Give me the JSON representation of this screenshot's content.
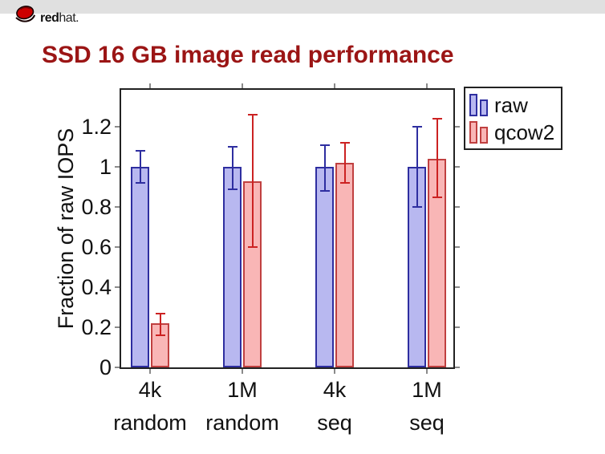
{
  "header": {
    "brand_bold": "red",
    "brand_rest": "hat",
    "brand_dot": "."
  },
  "title": "SSD 16 GB image read performance",
  "colors": {
    "title": "#9b1515",
    "band": "#e0e0e0",
    "axis": "#222222",
    "tick": "#8a8a8a"
  },
  "chart_data": {
    "type": "bar",
    "title": "SSD 16 GB image read performance",
    "xlabel": "",
    "ylabel": "Fraction of raw IOPS",
    "ylim": [
      0,
      1.39
    ],
    "yticks": [
      0,
      0.2,
      0.4,
      0.6,
      0.8,
      1,
      1.2
    ],
    "ytick_labels": [
      "0",
      "0.2",
      "0.4",
      "0.6",
      "0.8",
      "1",
      "1.2"
    ],
    "categories": [
      "4k random",
      "1M random",
      "4k seq",
      "1M seq"
    ],
    "category_labels": [
      [
        "4k",
        "random"
      ],
      [
        "1M",
        "random"
      ],
      [
        "4k",
        "seq"
      ],
      [
        "1M",
        "seq"
      ]
    ],
    "grid": false,
    "legend_position": "outside-top-right",
    "error_bars": true,
    "series": [
      {
        "name": "raw",
        "fill": "#b8b8f0",
        "border": "#2e2ea0",
        "error_color": "#2e2ea0",
        "values": [
          1.0,
          1.0,
          1.0,
          1.0
        ],
        "error_low": [
          0.92,
          0.89,
          0.88,
          0.8
        ],
        "error_high": [
          1.08,
          1.1,
          1.11,
          1.2
        ]
      },
      {
        "name": "qcow2",
        "fill": "#f9b6b6",
        "border": "#c04040",
        "error_color": "#cc2222",
        "values": [
          0.22,
          0.93,
          1.02,
          1.04
        ],
        "error_low": [
          0.16,
          0.6,
          0.92,
          0.85
        ],
        "error_high": [
          0.27,
          1.26,
          1.12,
          1.24
        ]
      }
    ]
  }
}
